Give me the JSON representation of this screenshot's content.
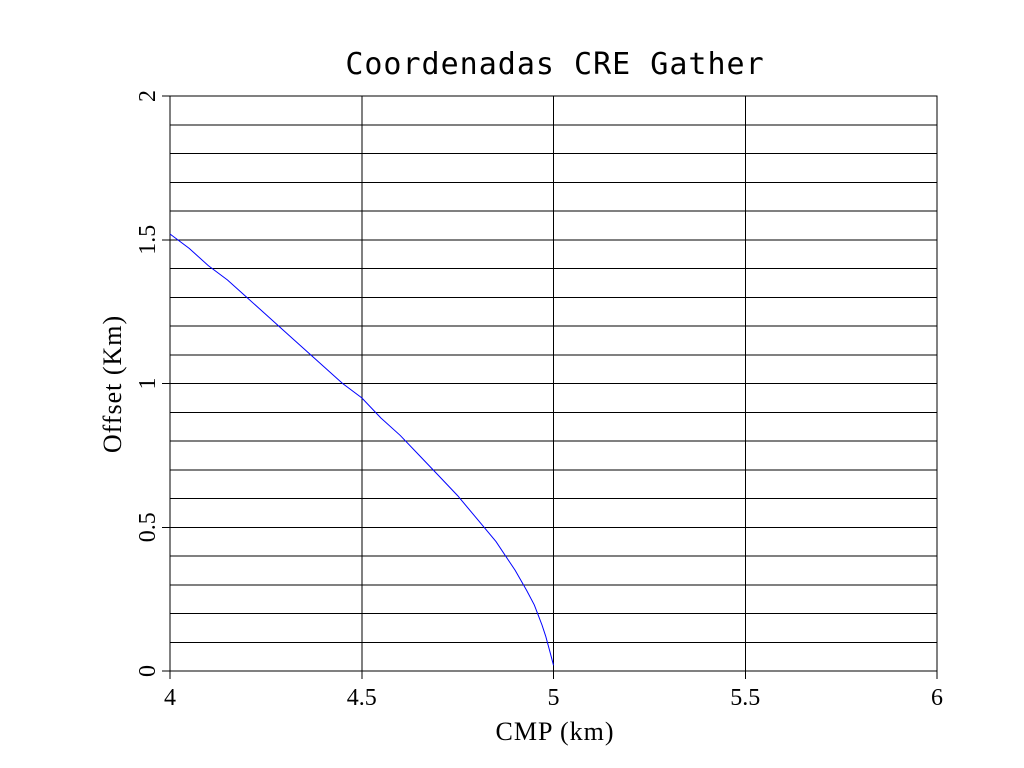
{
  "chart_data": {
    "type": "line",
    "title": "Coordenadas CRE Gather",
    "xlabel": "CMP (km)",
    "ylabel": "Offset (Km)",
    "xlim": [
      4,
      6
    ],
    "ylim": [
      0,
      2
    ],
    "xticks": [
      {
        "value": 4,
        "label": "4"
      },
      {
        "value": 4.5,
        "label": "4.5"
      },
      {
        "value": 5,
        "label": "5"
      },
      {
        "value": 5.5,
        "label": "5.5"
      },
      {
        "value": 6,
        "label": "6"
      }
    ],
    "yticks": [
      {
        "value": 0,
        "label": "0"
      },
      {
        "value": 0.5,
        "label": "0.5"
      },
      {
        "value": 1,
        "label": "1"
      },
      {
        "value": 1.5,
        "label": "1.5"
      },
      {
        "value": 2,
        "label": "2"
      }
    ],
    "grid": {
      "x_values": [
        4.5,
        5,
        5.5
      ],
      "y_step": 0.1
    },
    "series": [
      {
        "color": "#0000ff",
        "x": [
          4.0,
          4.05,
          4.1,
          4.15,
          4.2,
          4.25,
          4.3,
          4.35,
          4.4,
          4.45,
          4.5,
          4.55,
          4.6,
          4.65,
          4.7,
          4.75,
          4.8,
          4.85,
          4.9,
          4.93,
          4.95,
          4.97,
          4.98,
          4.99,
          5.0
        ],
        "y": [
          1.52,
          1.47,
          1.41,
          1.36,
          1.3,
          1.24,
          1.18,
          1.12,
          1.06,
          1.0,
          0.95,
          0.88,
          0.82,
          0.75,
          0.68,
          0.61,
          0.53,
          0.45,
          0.35,
          0.28,
          0.23,
          0.16,
          0.12,
          0.07,
          0.02
        ]
      }
    ]
  }
}
